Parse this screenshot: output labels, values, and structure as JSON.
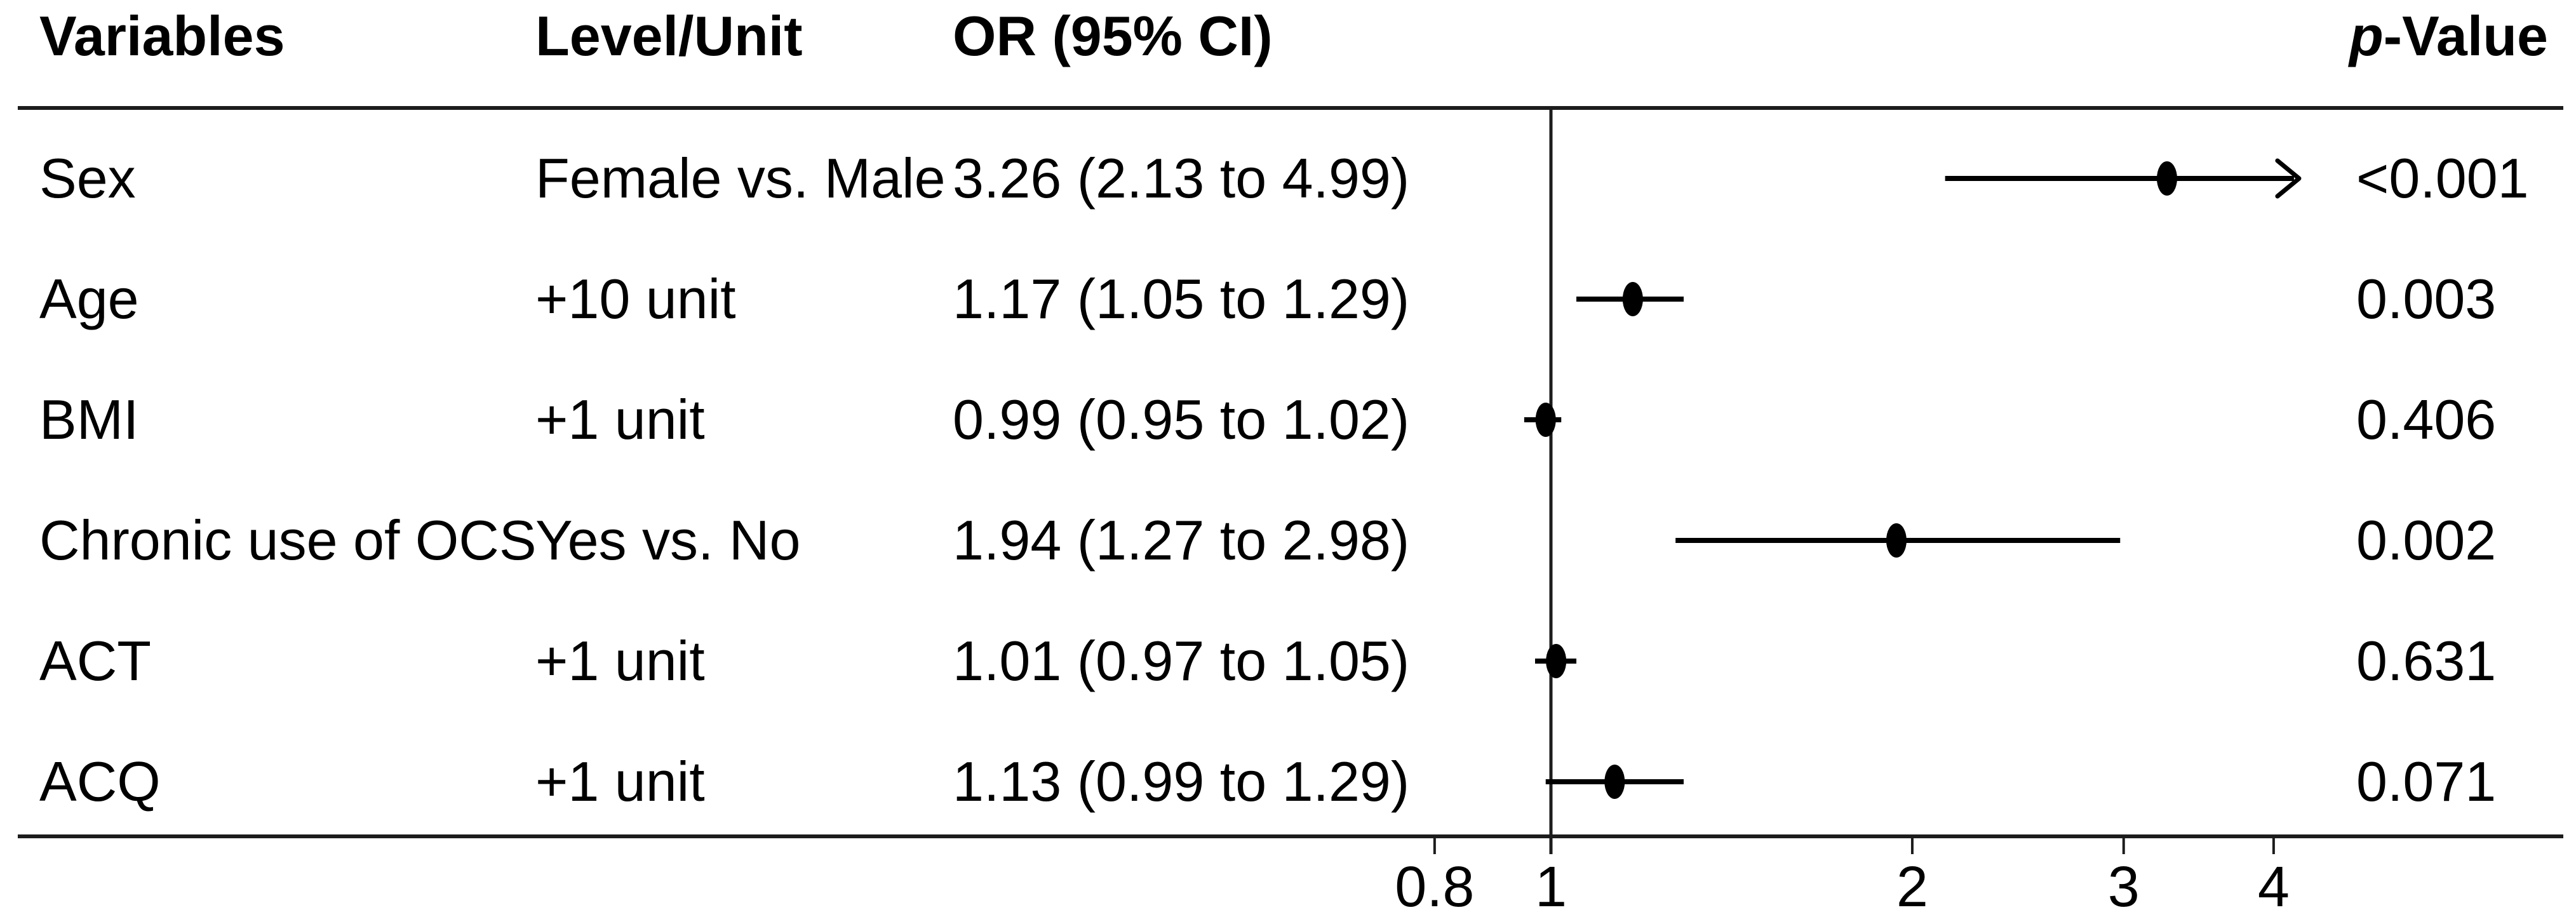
{
  "figure": {
    "headers": {
      "variables": "Variables",
      "level_unit": "Level/Unit",
      "or_ci": "OR (95% CI)",
      "p_value_prefix": "p",
      "p_value_suffix": "-Value"
    }
  },
  "chart_data": {
    "type": "forest",
    "title": "",
    "x_scale": "log10",
    "x_ticks": [
      0.8,
      1,
      2,
      3,
      4
    ],
    "x_tick_labels": [
      "0.8",
      "1",
      "2",
      "3",
      "4"
    ],
    "ref_line": 1,
    "clip_max": 4.2,
    "columns": [
      "Variables",
      "Level/Unit",
      "OR (95% CI)",
      "p-Value"
    ],
    "rows": [
      {
        "variable": "Sex",
        "level": "Female vs. Male",
        "or": 3.26,
        "ci_low": 2.13,
        "ci_high": 4.99,
        "or_ci_label": "3.26 (2.13 to 4.99)",
        "p_value": "<0.001",
        "ci_high_clipped": true
      },
      {
        "variable": "Age",
        "level": "+10 unit",
        "or": 1.17,
        "ci_low": 1.05,
        "ci_high": 1.29,
        "or_ci_label": "1.17 (1.05 to 1.29)",
        "p_value": "0.003",
        "ci_high_clipped": false
      },
      {
        "variable": "BMI",
        "level": "+1 unit",
        "or": 0.99,
        "ci_low": 0.95,
        "ci_high": 1.02,
        "or_ci_label": "0.99 (0.95 to 1.02)",
        "p_value": "0.406",
        "ci_high_clipped": false
      },
      {
        "variable": "Chronic use of OCS",
        "level": "Yes vs. No",
        "or": 1.94,
        "ci_low": 1.27,
        "ci_high": 2.98,
        "or_ci_label": "1.94 (1.27 to 2.98)",
        "p_value": "0.002",
        "ci_high_clipped": false
      },
      {
        "variable": "ACT",
        "level": "+1 unit",
        "or": 1.01,
        "ci_low": 0.97,
        "ci_high": 1.05,
        "or_ci_label": "1.01 (0.97 to 1.05)",
        "p_value": "0.631",
        "ci_high_clipped": false
      },
      {
        "variable": "ACQ",
        "level": "+1 unit",
        "or": 1.13,
        "ci_low": 0.99,
        "ci_high": 1.29,
        "or_ci_label": "1.13 (0.99 to 1.29)",
        "p_value": "0.071",
        "ci_high_clipped": false
      }
    ]
  },
  "colors": {
    "text": "#000000",
    "rule": "#1c1c1c",
    "marker": "#000000"
  }
}
